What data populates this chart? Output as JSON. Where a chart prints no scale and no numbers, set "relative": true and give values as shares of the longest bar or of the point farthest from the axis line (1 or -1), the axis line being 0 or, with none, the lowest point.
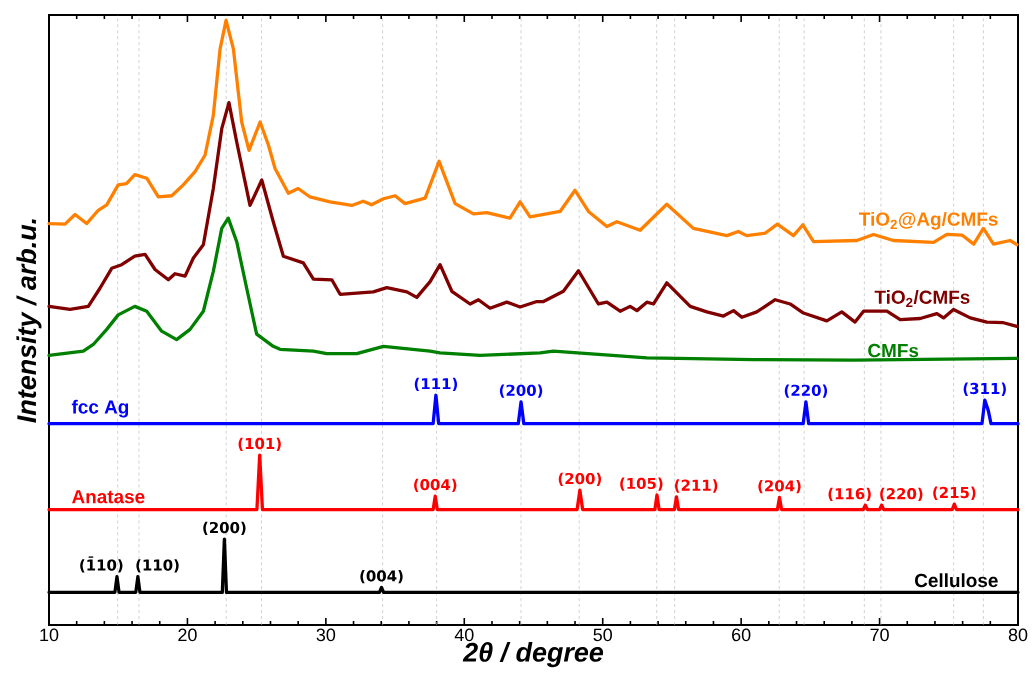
{
  "chart_data": {
    "type": "line",
    "relative": true,
    "xlabel": "2θ / degree",
    "ylabel": "Intensity / arb.u.",
    "xlim": [
      10,
      80
    ],
    "xticks": [
      10,
      20,
      30,
      40,
      50,
      60,
      70,
      80
    ],
    "line_style": "solid",
    "series": [
      {
        "name": "TiO$_{2}$@Ag/CMFs",
        "color": "#ff8000",
        "x": [
          10.0,
          11.16,
          11.88,
          12.72,
          13.56,
          14.17,
          15.0,
          15.6,
          16.2,
          17.06,
          17.9,
          18.87,
          19.7,
          20.55,
          21.27,
          21.87,
          22.36,
          22.79,
          23.32,
          23.92,
          24.45,
          25.25,
          25.85,
          26.33,
          27.29,
          28.0,
          28.86,
          30.3,
          31.87,
          32.7,
          33.3,
          34.16,
          35.0,
          35.72,
          37.17,
          38.18,
          39.34,
          40.66,
          41.63,
          43.3,
          44.03,
          44.75,
          46.92,
          48.0,
          48.97,
          50.3,
          51.02,
          52.7,
          54.63,
          56.55,
          58.97,
          59.8,
          60.4,
          61.73,
          62.62,
          63.78,
          64.46,
          65.23,
          68.36,
          69.56,
          71.0,
          73.9,
          74.86,
          75.95,
          76.8,
          77.5,
          78.23,
          79.43,
          79.92
        ],
        "values": [
          0.664,
          0.663,
          0.679,
          0.664,
          0.686,
          0.695,
          0.728,
          0.73,
          0.745,
          0.739,
          0.708,
          0.71,
          0.728,
          0.75,
          0.777,
          0.843,
          0.953,
          1.0,
          0.953,
          0.832,
          0.785,
          0.832,
          0.794,
          0.755,
          0.714,
          0.722,
          0.708,
          0.7,
          0.694,
          0.701,
          0.695,
          0.705,
          0.71,
          0.697,
          0.706,
          0.767,
          0.697,
          0.68,
          0.682,
          0.673,
          0.7,
          0.675,
          0.684,
          0.719,
          0.684,
          0.659,
          0.667,
          0.653,
          0.696,
          0.656,
          0.644,
          0.651,
          0.644,
          0.648,
          0.663,
          0.644,
          0.662,
          0.634,
          0.636,
          0.646,
          0.636,
          0.633,
          0.646,
          0.645,
          0.63,
          0.656,
          0.63,
          0.636,
          0.629
        ]
      },
      {
        "name": "TiO$_{2}$/CMFs",
        "color": "#800000",
        "x": [
          10.0,
          11.52,
          12.84,
          13.68,
          14.53,
          15.25,
          16.2,
          16.94,
          17.66,
          18.62,
          19.1,
          19.83,
          20.43,
          21.15,
          21.87,
          22.48,
          23.0,
          23.56,
          24.52,
          25.37,
          26.2,
          26.93,
          28.37,
          29.1,
          30.43,
          31.03,
          33.43,
          34.4,
          35.85,
          36.57,
          37.53,
          38.25,
          39.1,
          40.42,
          41.02,
          41.86,
          43.07,
          44.03,
          45.24,
          45.72,
          47.16,
          48.25,
          49.69,
          50.3,
          51.26,
          51.98,
          52.47,
          53.19,
          53.67,
          54.63,
          56.32,
          57.52,
          58.72,
          59.45,
          60.05,
          61.13,
          62.46,
          63.54,
          64.5,
          66.19,
          67.27,
          68.23,
          68.84,
          70.53,
          71.49,
          72.93,
          74.14,
          74.62,
          75.34,
          76.55,
          77.75,
          78.95,
          79.92
        ],
        "values": [
          0.527,
          0.522,
          0.527,
          0.557,
          0.59,
          0.596,
          0.61,
          0.613,
          0.588,
          0.571,
          0.581,
          0.577,
          0.607,
          0.629,
          0.722,
          0.821,
          0.864,
          0.799,
          0.694,
          0.736,
          0.667,
          0.61,
          0.599,
          0.572,
          0.571,
          0.547,
          0.551,
          0.558,
          0.551,
          0.542,
          0.568,
          0.596,
          0.552,
          0.531,
          0.538,
          0.524,
          0.534,
          0.526,
          0.535,
          0.535,
          0.552,
          0.586,
          0.531,
          0.534,
          0.519,
          0.527,
          0.52,
          0.534,
          0.531,
          0.566,
          0.527,
          0.518,
          0.511,
          0.52,
          0.509,
          0.518,
          0.538,
          0.531,
          0.516,
          0.503,
          0.518,
          0.501,
          0.519,
          0.519,
          0.505,
          0.507,
          0.515,
          0.508,
          0.522,
          0.508,
          0.501,
          0.5,
          0.494
        ]
      },
      {
        "name": "CMFs",
        "color": "#008000",
        "x": [
          10.0,
          12.48,
          13.2,
          14.17,
          15.0,
          16.2,
          17.06,
          18.14,
          19.22,
          20.19,
          21.15,
          21.87,
          22.48,
          22.95,
          23.56,
          24.28,
          25.0,
          26.2,
          26.69,
          29.1,
          30.06,
          32.23,
          34.16,
          37.53,
          38.25,
          41.14,
          45.48,
          46.44,
          53.19,
          60.89,
          68.12,
          79.92
        ],
        "values": [
          0.446,
          0.453,
          0.464,
          0.489,
          0.513,
          0.527,
          0.519,
          0.486,
          0.472,
          0.489,
          0.519,
          0.585,
          0.656,
          0.673,
          0.634,
          0.557,
          0.481,
          0.461,
          0.456,
          0.453,
          0.449,
          0.449,
          0.461,
          0.453,
          0.45,
          0.446,
          0.45,
          0.453,
          0.442,
          0.439,
          0.438,
          0.441
        ]
      },
      {
        "name": "fcc Ag",
        "color": "#0000ff",
        "x": [
          10,
          37.75,
          37.95,
          38.15,
          43.9,
          44.1,
          44.3,
          64.48,
          64.68,
          64.88,
          77.4,
          77.6,
          77.85,
          78.05,
          80
        ],
        "values": [
          0.333,
          0.333,
          0.38,
          0.333,
          0.333,
          0.369,
          0.333,
          0.333,
          0.369,
          0.333,
          0.333,
          0.372,
          0.355,
          0.333,
          0.333
        ]
      },
      {
        "name": "Anatase",
        "color": "#ff0000",
        "x": [
          10,
          25.02,
          25.22,
          25.42,
          37.75,
          37.9,
          38.05,
          48.15,
          48.35,
          48.55,
          53.77,
          53.92,
          54.07,
          55.18,
          55.33,
          55.48,
          62.62,
          62.77,
          62.92,
          68.82,
          68.97,
          69.12,
          70.0,
          70.15,
          70.3,
          75.25,
          75.4,
          75.55,
          80
        ],
        "values": [
          0.191,
          0.191,
          0.281,
          0.191,
          0.191,
          0.213,
          0.191,
          0.191,
          0.223,
          0.191,
          0.191,
          0.215,
          0.191,
          0.191,
          0.212,
          0.191,
          0.191,
          0.211,
          0.191,
          0.191,
          0.198,
          0.191,
          0.191,
          0.198,
          0.191,
          0.191,
          0.2,
          0.191,
          0.191
        ]
      },
      {
        "name": "Cellulose",
        "color": "#000000",
        "x": [
          10,
          14.76,
          14.91,
          15.06,
          16.27,
          16.42,
          16.57,
          22.52,
          22.67,
          22.82,
          33.87,
          34.02,
          34.17,
          80
        ],
        "values": [
          0.054,
          0.054,
          0.08,
          0.054,
          0.054,
          0.08,
          0.054,
          0.054,
          0.142,
          0.054,
          0.054,
          0.062,
          0.054,
          0.054
        ]
      }
    ],
    "annotations": [
      {
        "text": "(111)",
        "x": 37.95,
        "y": 0.38
      },
      {
        "text": "(200)",
        "x": 44.1,
        "y": 0.369
      },
      {
        "text": "(220)",
        "x": 64.68,
        "y": 0.369
      },
      {
        "text": "(311)",
        "x": 77.6,
        "y": 0.372
      },
      {
        "text": "(101)",
        "x": 25.22,
        "y": 0.281
      },
      {
        "text": "(004)",
        "x": 37.9,
        "y": 0.213
      },
      {
        "text": "(200)",
        "x": 48.35,
        "y": 0.223
      },
      {
        "text": "(105)",
        "x": 53.92,
        "y": 0.215
      },
      {
        "text": "(211)",
        "x": 55.33,
        "y": 0.212
      },
      {
        "text": "(204)",
        "x": 62.77,
        "y": 0.211
      },
      {
        "text": "(116)",
        "x": 68.97,
        "y": 0.198
      },
      {
        "text": "(220)",
        "x": 70.15,
        "y": 0.198
      },
      {
        "text": "(215)",
        "x": 75.4,
        "y": 0.2
      },
      {
        "text": "(1̄10)",
        "x": 14.91,
        "y": 0.08
      },
      {
        "text": "(110)",
        "x": 16.42,
        "y": 0.08
      },
      {
        "text": "(200)",
        "x": 22.67,
        "y": 0.142
      },
      {
        "text": "(004)",
        "x": 34.02,
        "y": 0.062
      }
    ],
    "ref_lines": [
      {
        "axis": "x",
        "value": 14.96,
        "color": "#b4b4b4",
        "line_style": "dashed"
      },
      {
        "axis": "x",
        "value": 16.5,
        "color": "#b4b4b4",
        "line_style": "dashed"
      },
      {
        "axis": "x",
        "value": 22.8,
        "color": "#b4b4b4",
        "line_style": "dashed"
      },
      {
        "axis": "x",
        "value": 25.35,
        "color": "#b4b4b4",
        "line_style": "dashed"
      },
      {
        "axis": "x",
        "value": 34.1,
        "color": "#b4b4b4",
        "line_style": "dashed"
      },
      {
        "axis": "x",
        "value": 38.0,
        "color": "#b4b4b4",
        "line_style": "dashed"
      },
      {
        "axis": "x",
        "value": 44.1,
        "color": "#b4b4b4",
        "line_style": "dashed"
      },
      {
        "axis": "x",
        "value": 48.3,
        "color": "#b4b4b4",
        "line_style": "dashed"
      },
      {
        "axis": "x",
        "value": 53.9,
        "color": "#b4b4b4",
        "line_style": "dashed"
      },
      {
        "axis": "x",
        "value": 55.2,
        "color": "#b4b4b4",
        "line_style": "dashed"
      },
      {
        "axis": "x",
        "value": 62.75,
        "color": "#b4b4b4",
        "line_style": "dashed"
      },
      {
        "axis": "x",
        "value": 64.55,
        "color": "#b4b4b4",
        "line_style": "dashed"
      },
      {
        "axis": "x",
        "value": 68.9,
        "color": "#b4b4b4",
        "line_style": "dashed"
      },
      {
        "axis": "x",
        "value": 70.1,
        "color": "#b4b4b4",
        "line_style": "dashed"
      },
      {
        "axis": "x",
        "value": 75.35,
        "color": "#b4b4b4",
        "line_style": "dashed"
      },
      {
        "axis": "x",
        "value": 77.5,
        "color": "#b4b4b4",
        "line_style": "dashed"
      }
    ]
  }
}
